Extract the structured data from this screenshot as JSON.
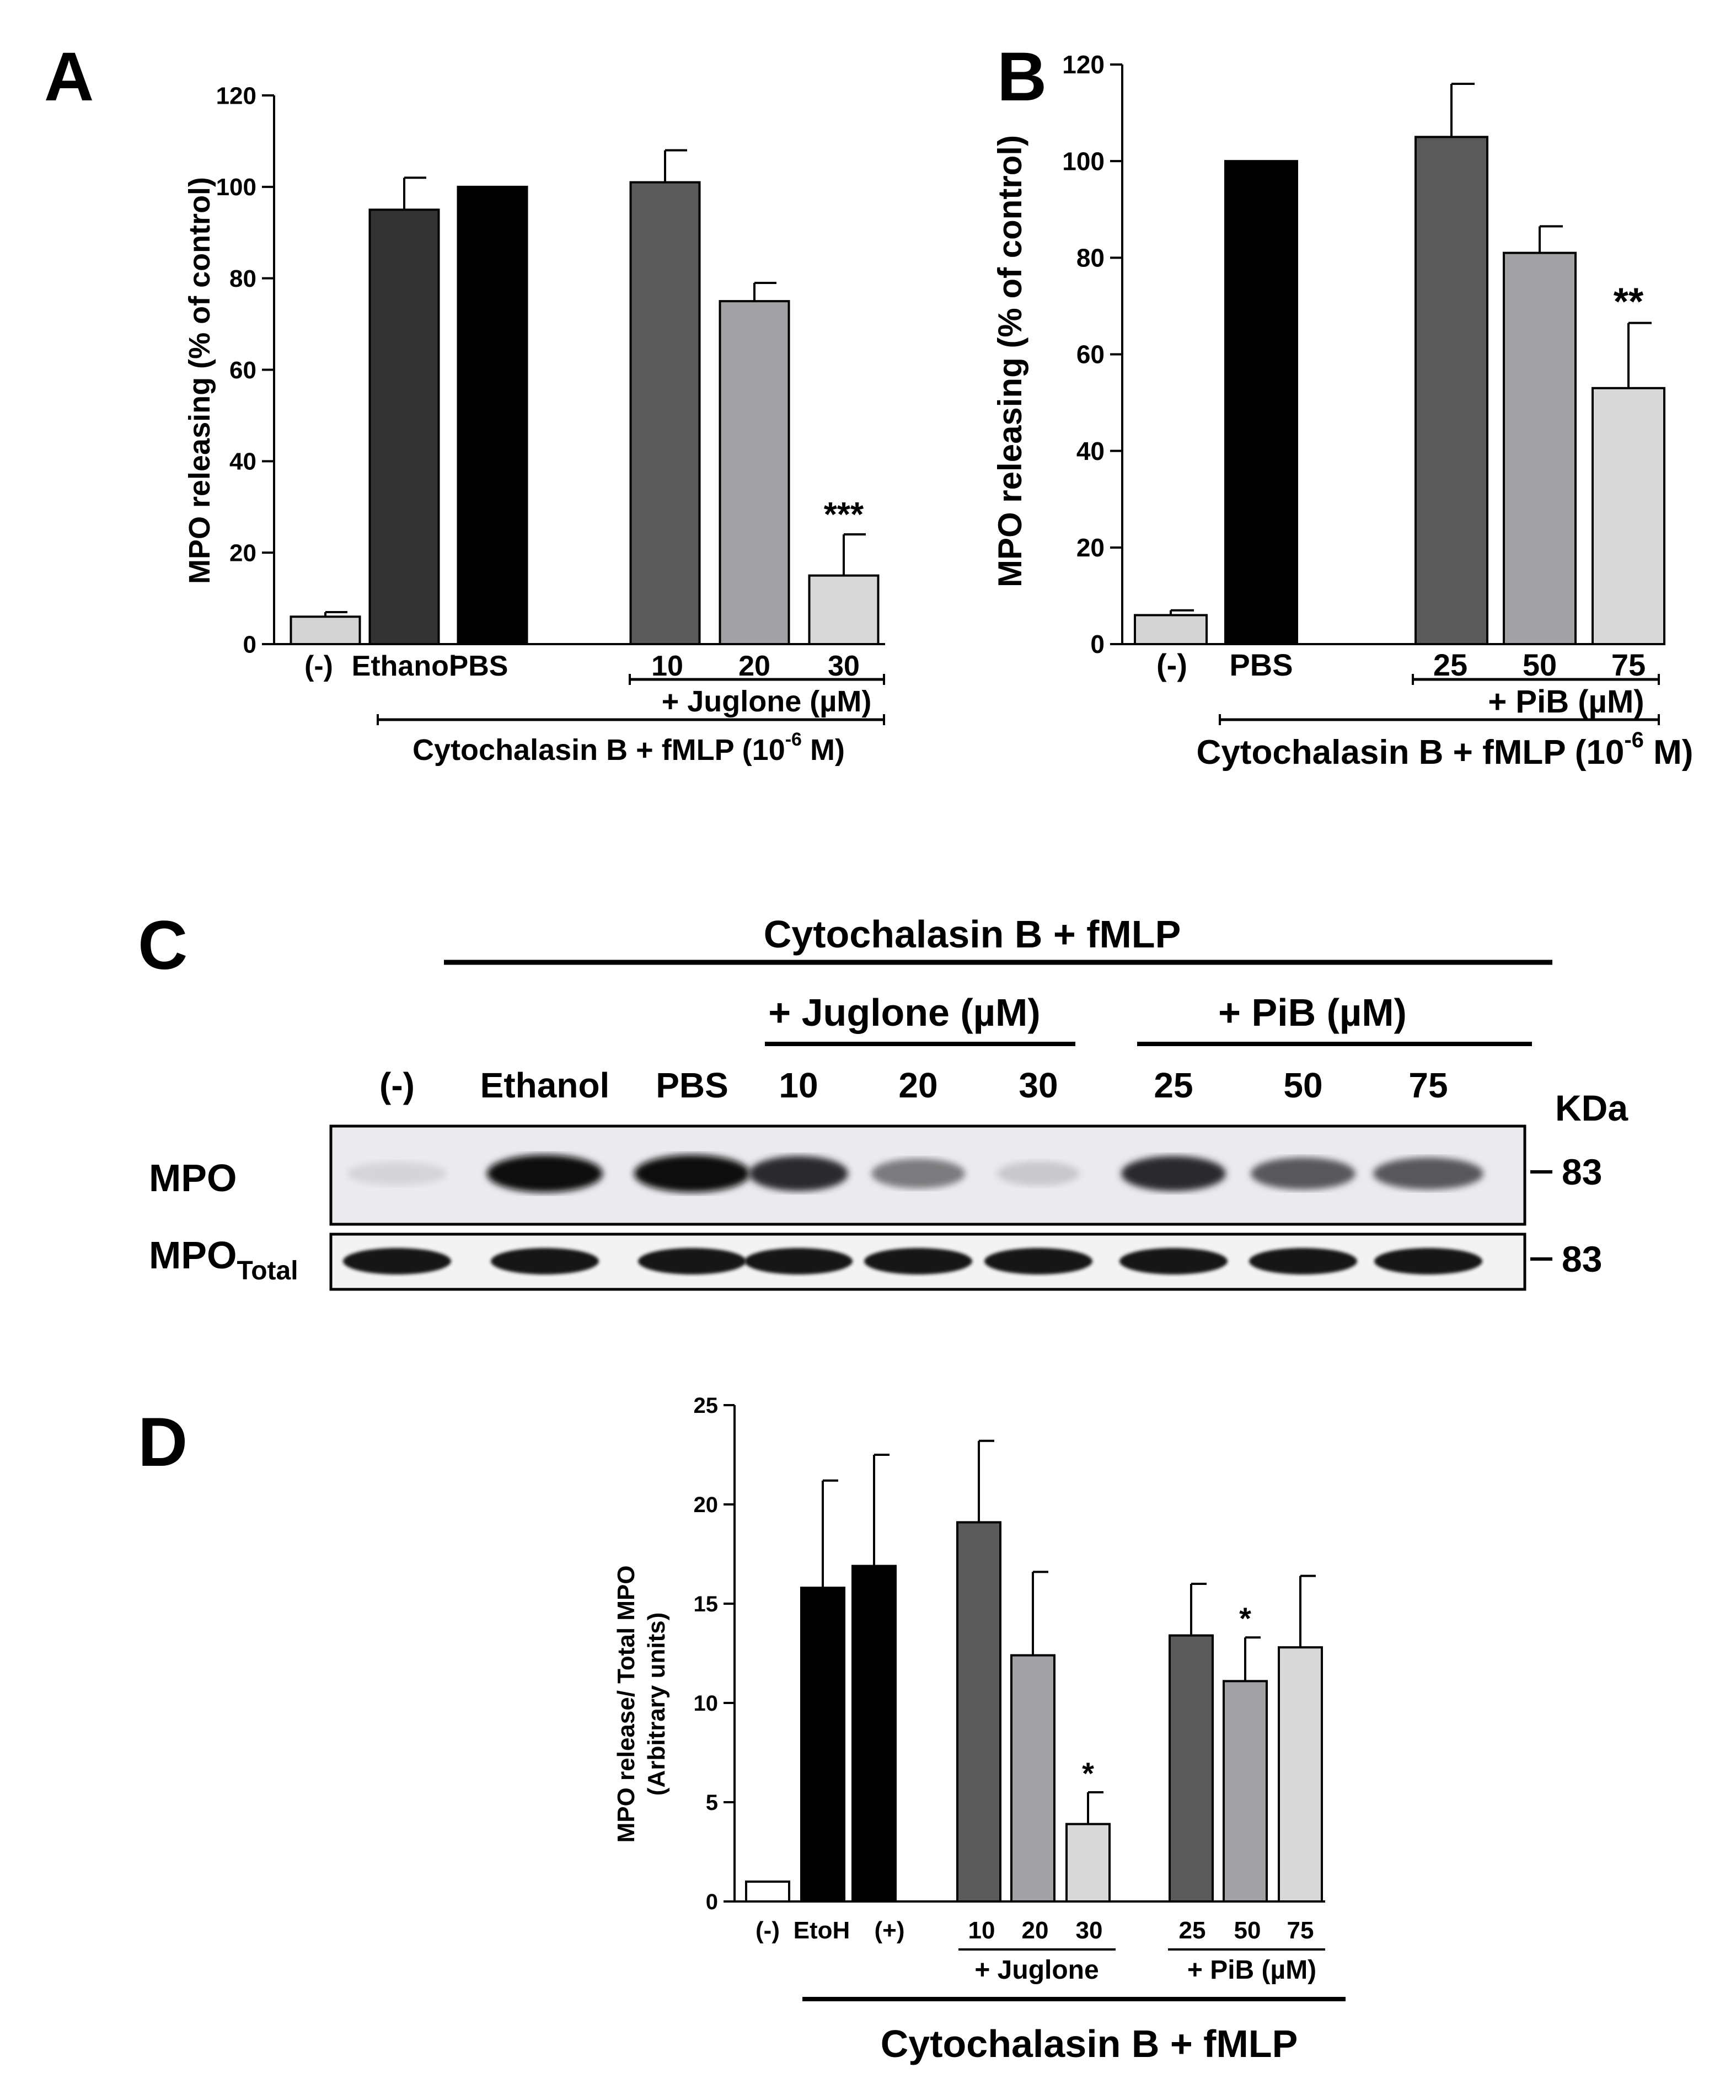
{
  "chart_data": [
    {
      "panel": "A",
      "type": "bar",
      "ylabel": "MPO releasing (% of control)",
      "ylim": [
        0,
        120
      ],
      "yticks": [
        0,
        20,
        40,
        60,
        80,
        100,
        120
      ],
      "categories": [
        "(-)",
        "Ethanol",
        "PBS",
        "10",
        "20",
        "30"
      ],
      "values": [
        6,
        95,
        100,
        101,
        75,
        15
      ],
      "errors": [
        1,
        7,
        0,
        7,
        4,
        9
      ],
      "colors": [
        "#d4d4d4",
        "#333333",
        "#000000",
        "#5a5a5a",
        "#a2a2a6",
        "#d8d8d8"
      ],
      "annotations": [
        "",
        "",
        "",
        "",
        "",
        "***"
      ],
      "group_label_inner": "+ Juglone (µM)",
      "group_label_outer": "Cytochalasin B + fMLP (10",
      "group_label_outer_sup": "-6",
      "group_label_outer_end": " M)"
    },
    {
      "panel": "B",
      "type": "bar",
      "ylabel": "MPO releasing (% of control)",
      "ylim": [
        0,
        120
      ],
      "yticks": [
        0,
        20,
        40,
        60,
        80,
        100,
        120
      ],
      "categories": [
        "(-)",
        "PBS",
        "25",
        "50",
        "75"
      ],
      "values": [
        6,
        100,
        105,
        81,
        53
      ],
      "errors": [
        1,
        0,
        11,
        5.5,
        13.5
      ],
      "colors": [
        "#d4d4d4",
        "#000000",
        "#5a5a5a",
        "#a2a2a6",
        "#d8d8d8"
      ],
      "annotations": [
        "",
        "",
        "",
        "",
        "**"
      ],
      "group_label_inner": "+ PiB (µM)",
      "group_label_outer": "Cytochalasin B + fMLP (10",
      "group_label_outer_sup": "-6",
      "group_label_outer_end": " M)"
    },
    {
      "panel": "D",
      "type": "bar",
      "ylabel_line1": "MPO release/ Total MPO",
      "ylabel_line2": "(Arbitrary units)",
      "ylim": [
        0,
        25
      ],
      "yticks": [
        0,
        5,
        10,
        15,
        20,
        25
      ],
      "categories": [
        "(-)",
        "EtoH",
        "(+)",
        "10",
        "20",
        "30",
        "25",
        "50",
        "75"
      ],
      "values": [
        1,
        15.8,
        16.9,
        19.1,
        12.4,
        3.9,
        13.4,
        11.1,
        12.8
      ],
      "errors": [
        0,
        5.4,
        5.6,
        4.1,
        4.2,
        1.6,
        2.6,
        2.2,
        3.6
      ],
      "colors": [
        "#ffffff",
        "#000000",
        "#000000",
        "#5a5a5a",
        "#a2a2a6",
        "#d8d8d8",
        "#5a5a5a",
        "#a2a2a6",
        "#d8d8d8"
      ],
      "annotations": [
        "",
        "",
        "",
        "",
        "",
        "*",
        "",
        "*",
        ""
      ],
      "group_label_juglone": "+ Juglone",
      "group_label_pib": "+ PiB (µM)",
      "group_label_outer": "Cytochalasin B + fMLP"
    }
  ],
  "panel_letters": {
    "a": "A",
    "b": "B",
    "c": "C",
    "d": "D"
  },
  "blot": {
    "title": "Cytochalasin B + fMLP",
    "juglone_label": "+ Juglone (µM)",
    "pib_label": "+ PiB (µM)",
    "lanes": [
      "(-)",
      "Ethanol",
      "PBS",
      "10",
      "20",
      "30",
      "25",
      "50",
      "75"
    ],
    "kda_label": "KDa",
    "row1_label": "MPO",
    "row2_label": "MPO",
    "row2_sub": "Total",
    "row1_marker": "83",
    "row2_marker": "83",
    "row1_band_intensity": [
      0.1,
      1.0,
      1.0,
      0.85,
      0.5,
      0.15,
      0.85,
      0.65,
      0.65
    ]
  }
}
